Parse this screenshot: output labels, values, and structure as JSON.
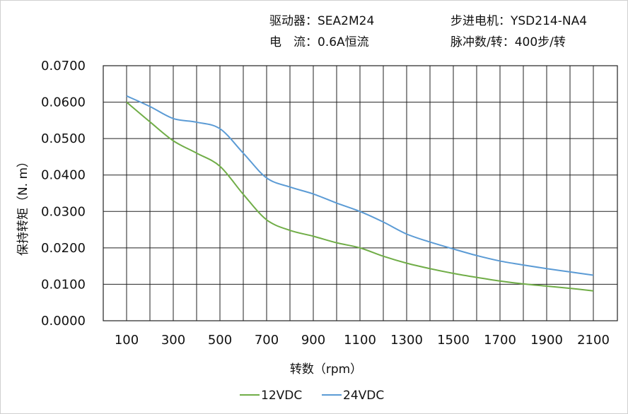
{
  "header": {
    "driver": "驱动器：SEA2M24",
    "current": "电　流：0.6A恒流",
    "motor": "步进电机：YSD214-NA4",
    "pulses": "脉冲数/转：400步/转"
  },
  "chart_data": {
    "type": "line",
    "xlabel": "转数（rpm）",
    "ylabel": "保持转矩（N. m）",
    "xlim": [
      100,
      2100
    ],
    "ylim": [
      0,
      0.07
    ],
    "grid": true,
    "legend": "bottom",
    "x": [
      100,
      200,
      300,
      400,
      500,
      600,
      700,
      800,
      900,
      1000,
      1100,
      1200,
      1300,
      1400,
      1500,
      1600,
      1700,
      1800,
      1900,
      2000,
      2100
    ],
    "xticks": [
      "100",
      "300",
      "500",
      "700",
      "900",
      "1100",
      "1300",
      "1500",
      "1700",
      "1900",
      "2100"
    ],
    "yticks": [
      "0.0000",
      "0.0100",
      "0.0200",
      "0.0300",
      "0.0400",
      "0.0500",
      "0.0600",
      "0.0700"
    ],
    "series": [
      {
        "name": "12VDC",
        "color": "#70ad47",
        "values": [
          0.06,
          0.0546,
          0.0494,
          0.046,
          0.0424,
          0.0347,
          0.0277,
          0.0248,
          0.0232,
          0.0214,
          0.02,
          0.0177,
          0.0158,
          0.0143,
          0.013,
          0.0119,
          0.0109,
          0.0101,
          0.0095,
          0.0089,
          0.0082
        ]
      },
      {
        "name": "24VDC",
        "color": "#5b9bd5",
        "values": [
          0.0617,
          0.0588,
          0.0555,
          0.0545,
          0.0527,
          0.046,
          0.0392,
          0.0367,
          0.0348,
          0.0323,
          0.03,
          0.0271,
          0.0238,
          0.0216,
          0.0197,
          0.0179,
          0.0164,
          0.0153,
          0.0143,
          0.0134,
          0.0125
        ]
      }
    ]
  }
}
